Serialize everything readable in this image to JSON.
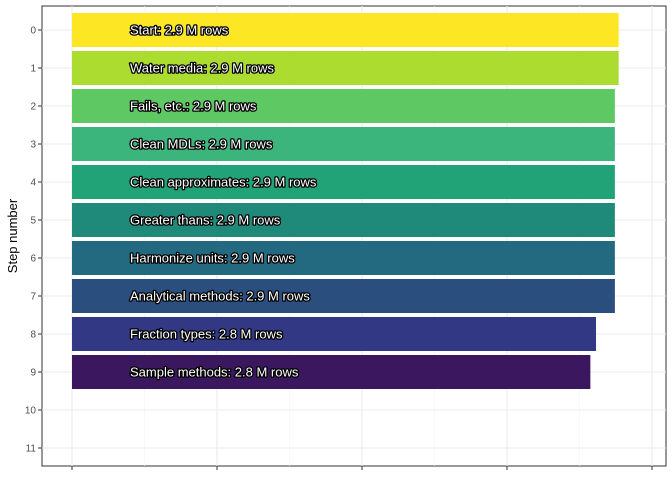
{
  "chart_data": {
    "type": "bar",
    "orientation": "horizontal",
    "title": "",
    "xlabel": "",
    "ylabel": "Step number",
    "y_ticks": [
      "0",
      "1",
      "2",
      "3",
      "4",
      "5",
      "6",
      "7",
      "8",
      "9",
      "10",
      "11"
    ],
    "bars": [
      {
        "step": 0,
        "label": "Start:  2.9 M rows",
        "value": 2.9,
        "color": "#fde725"
      },
      {
        "step": 1,
        "label": "Water media:  2.9 M rows",
        "value": 2.9,
        "color": "#addc30"
      },
      {
        "step": 2,
        "label": "Fails, etc.:  2.9 M rows",
        "value": 2.88,
        "color": "#5ec962"
      },
      {
        "step": 3,
        "label": "Clean MDLs:  2.9 M rows",
        "value": 2.88,
        "color": "#3bb57b"
      },
      {
        "step": 4,
        "label": "Clean approximates:  2.9 M rows",
        "value": 2.88,
        "color": "#21a377"
      },
      {
        "step": 5,
        "label": "Greater thans:  2.9 M rows",
        "value": 2.88,
        "color": "#1f8a79"
      },
      {
        "step": 6,
        "label": "Harmonize units:  2.9 M rows",
        "value": 2.88,
        "color": "#236a80"
      },
      {
        "step": 7,
        "label": "Analytical methods:  2.9 M rows",
        "value": 2.88,
        "color": "#2a4e7e"
      },
      {
        "step": 8,
        "label": "Fraction types:  2.8 M rows",
        "value": 2.78,
        "color": "#323883"
      },
      {
        "step": 9,
        "label": "Sample methods:  2.8 M rows",
        "value": 2.75,
        "color": "#3b1760"
      }
    ],
    "x_range": [
      0,
      3.0
    ],
    "grid": true,
    "legend": "none"
  }
}
